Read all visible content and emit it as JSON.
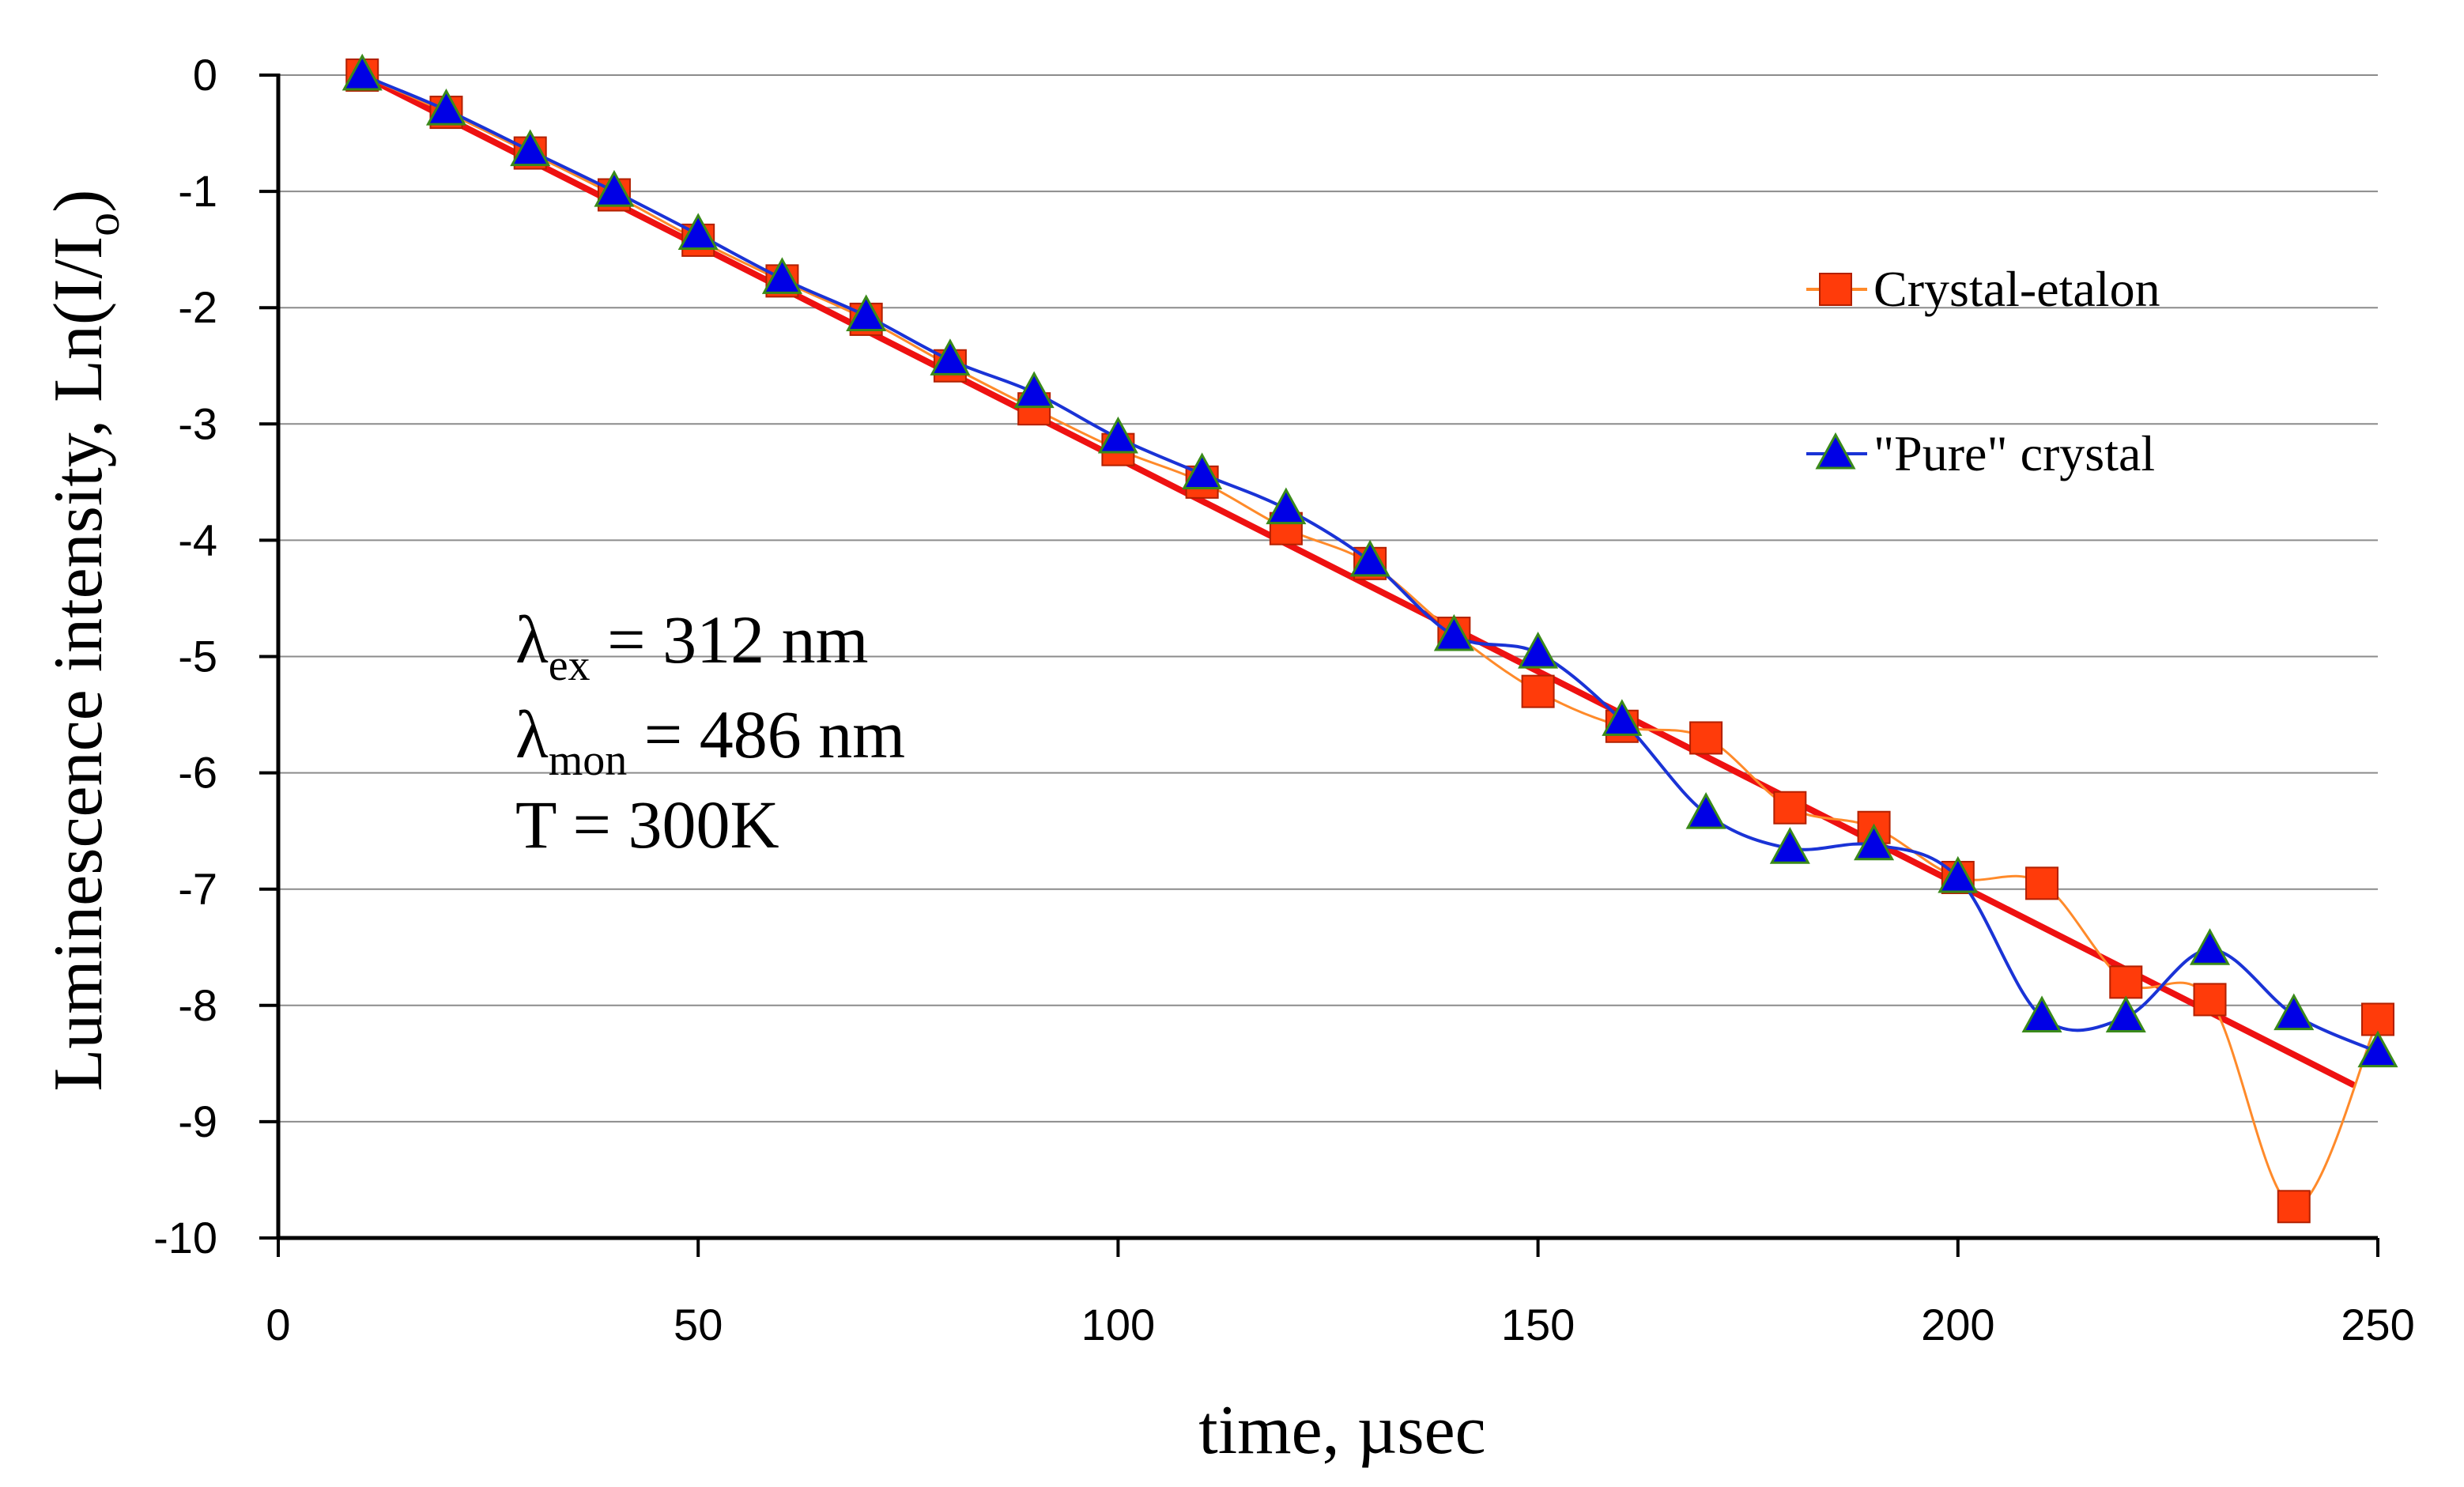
{
  "chart_data": {
    "type": "line",
    "title": "",
    "xlabel": "time, µsec",
    "ylabel_prefix": "Luminescence intensity,  Ln(I/I",
    "ylabel_sub": "o",
    "ylabel_suffix": ")",
    "xlim": [
      0,
      250
    ],
    "ylim": [
      -10,
      0
    ],
    "xticks": [
      0,
      50,
      100,
      150,
      200,
      250
    ],
    "yticks": [
      0,
      -1,
      -2,
      -3,
      -4,
      -5,
      -6,
      -7,
      -8,
      -9,
      -10
    ],
    "grid": "horizontal",
    "legend_position": "right",
    "series": [
      {
        "name": "Crystal-etalon",
        "marker": "square",
        "color": "#ff3b0a",
        "line_color": "#ff8a2a",
        "x": [
          10,
          20,
          30,
          40,
          50,
          60,
          70,
          80,
          90,
          100,
          110,
          120,
          130,
          140,
          150,
          160,
          170,
          180,
          190,
          200,
          210,
          220,
          230,
          240,
          250
        ],
        "y": [
          0,
          -0.32,
          -0.67,
          -1.03,
          -1.42,
          -1.77,
          -2.1,
          -2.5,
          -2.87,
          -3.22,
          -3.5,
          -3.9,
          -4.2,
          -4.8,
          -5.3,
          -5.6,
          -5.7,
          -6.3,
          -6.47,
          -6.9,
          -6.95,
          -7.8,
          -7.95,
          -9.73,
          -8.12
        ]
      },
      {
        "name": "\"Pure\" crystal",
        "marker": "triangle",
        "color": "#0000e6",
        "line_color": "#1a33d6",
        "x": [
          10,
          20,
          30,
          40,
          50,
          60,
          70,
          80,
          90,
          100,
          110,
          120,
          130,
          140,
          150,
          160,
          170,
          180,
          190,
          200,
          210,
          220,
          230,
          240,
          250
        ],
        "y": [
          0,
          -0.3,
          -0.65,
          -1.0,
          -1.37,
          -1.75,
          -2.07,
          -2.45,
          -2.73,
          -3.12,
          -3.43,
          -3.73,
          -4.18,
          -4.82,
          -4.97,
          -5.55,
          -6.35,
          -6.65,
          -6.62,
          -6.9,
          -8.1,
          -8.1,
          -7.52,
          -8.08,
          -8.4
        ]
      },
      {
        "name": "linear fit",
        "kind": "fit",
        "color": "#ee1111",
        "x": [
          10,
          247
        ],
        "y": [
          0,
          -8.68
        ]
      }
    ],
    "annotations": [
      {
        "symbol": "λ",
        "sub": "ex",
        "text": " = 312 nm"
      },
      {
        "symbol": "λ",
        "sub": "mon",
        "text": " = 486 nm"
      },
      {
        "symbol": "",
        "sub": "",
        "text": "T = 300K"
      }
    ]
  }
}
